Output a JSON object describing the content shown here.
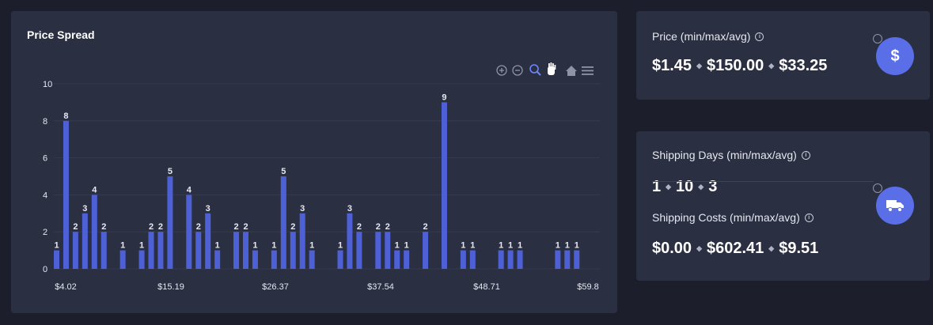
{
  "chart_card": {
    "title": "Price Spread",
    "toolbar": [
      "zoom-in-icon",
      "zoom-out-icon",
      "magnifier-icon",
      "pan-hand-icon",
      "home-icon",
      "menu-icon"
    ]
  },
  "chart_data": {
    "type": "bar",
    "title": "Price Spread",
    "bar_color": "#4e60d6",
    "ylim": [
      0,
      10
    ],
    "y_ticks": [
      "0",
      "2",
      "4",
      "6",
      "8",
      "10"
    ],
    "x_tick_labels": [
      "$4.02",
      "$15.19",
      "$26.37",
      "$37.54",
      "$48.71",
      "$59.8"
    ],
    "values": [
      1,
      8,
      2,
      3,
      4,
      2,
      0,
      1,
      0,
      1,
      2,
      2,
      5,
      0,
      4,
      2,
      3,
      1,
      0,
      2,
      2,
      1,
      0,
      1,
      5,
      2,
      3,
      1,
      0,
      0,
      1,
      3,
      2,
      0,
      2,
      2,
      1,
      1,
      0,
      2,
      0,
      9,
      0,
      1,
      1,
      0,
      0,
      1,
      1,
      1,
      0,
      0,
      0,
      1,
      1,
      1
    ],
    "grid": true
  },
  "price": {
    "label": "Price (min/max/avg)",
    "min": "$1.45",
    "max": "$150.00",
    "avg": "$33.25",
    "icon": "dollar-icon",
    "accent": "#5a6ee8"
  },
  "shipping_days": {
    "label": "Shipping Days (min/max/avg)",
    "min": "1",
    "max": "10",
    "avg": "3"
  },
  "shipping_costs": {
    "label": "Shipping Costs (min/max/avg)",
    "min": "$0.00",
    "max": "$602.41",
    "avg": "$9.51",
    "icon": "truck-icon"
  }
}
